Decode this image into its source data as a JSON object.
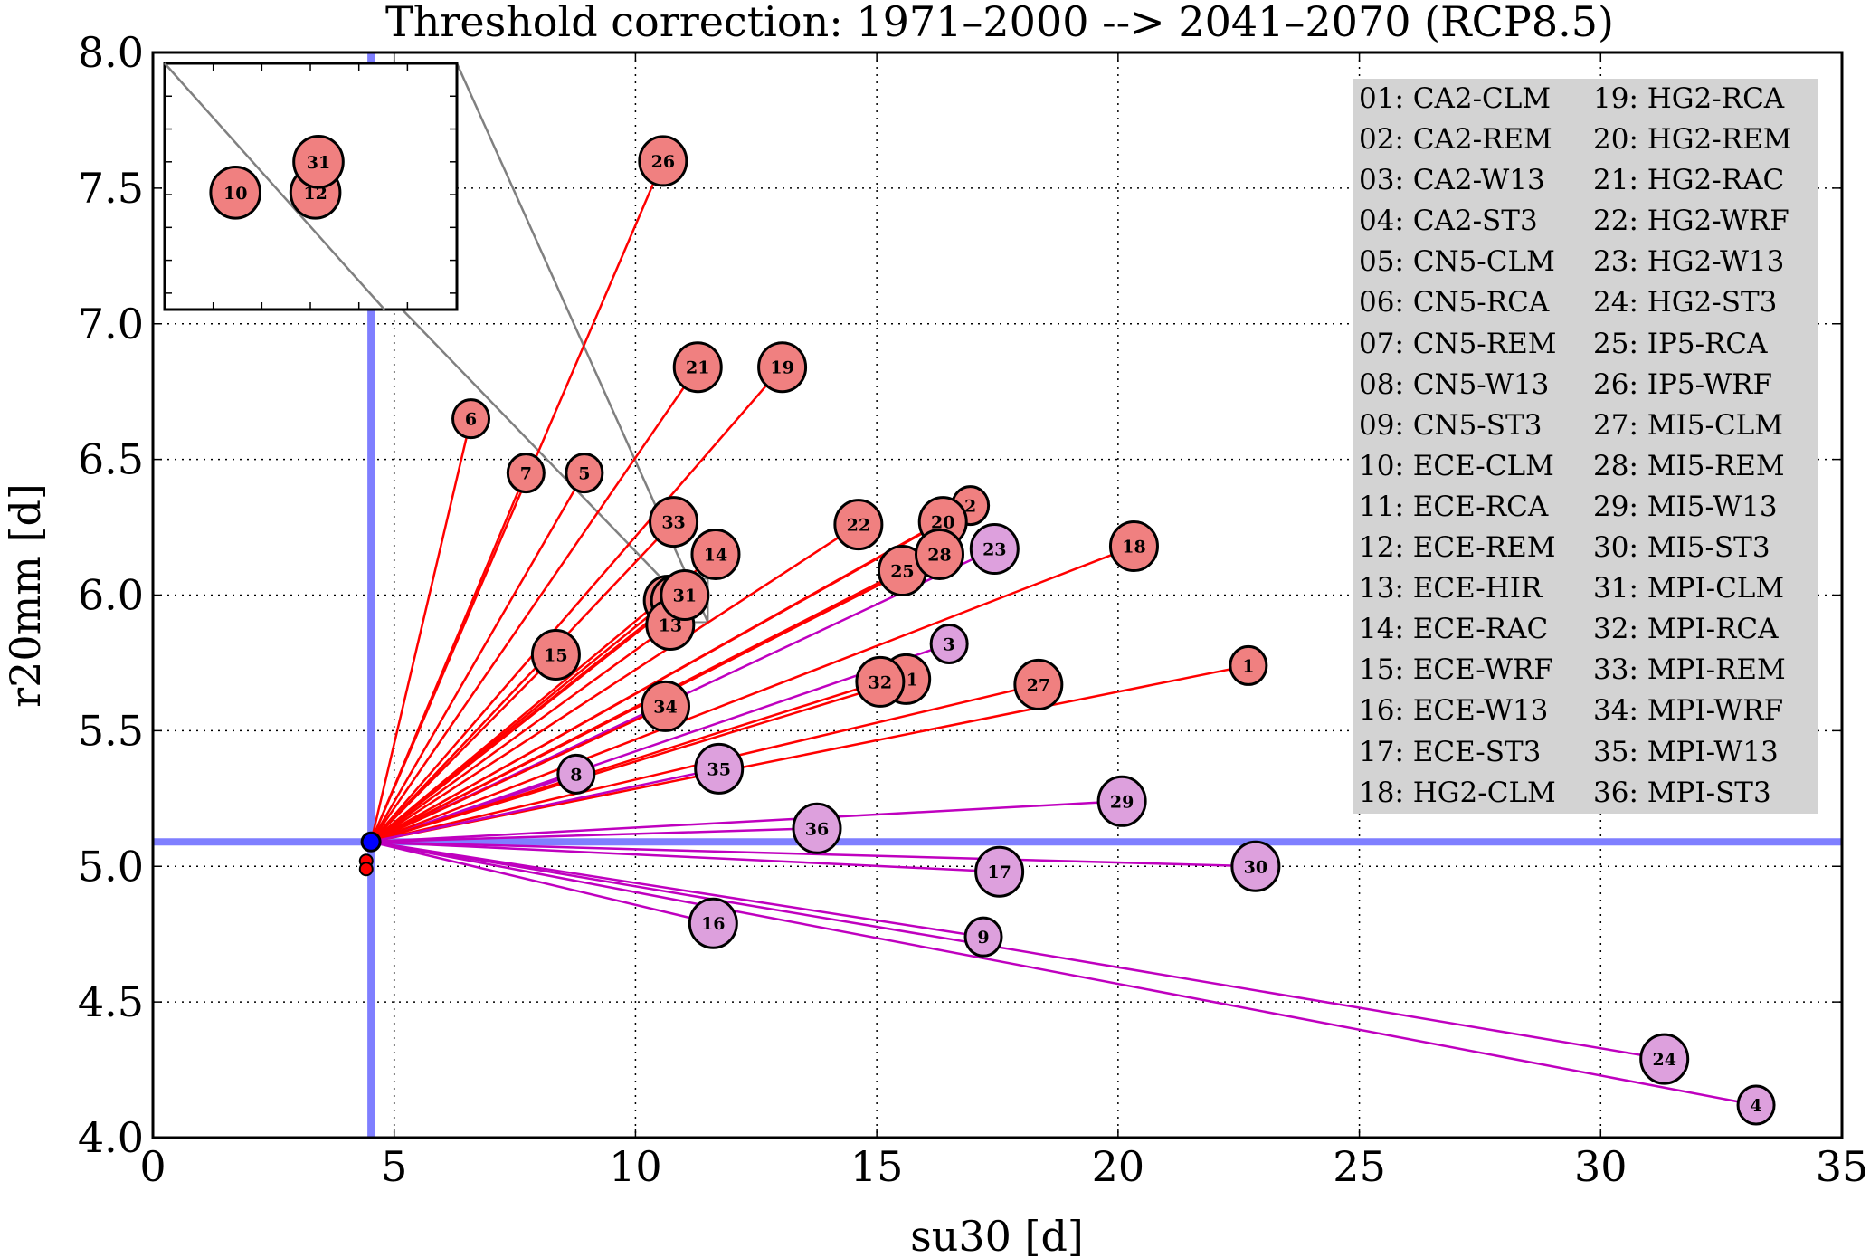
{
  "chart_data": {
    "type": "scatter",
    "title": "Threshold correction: 1971–2000 --> 2041–2070 (RCP8.5)",
    "xlabel": "su30 [d]",
    "ylabel": "r20mm [d]",
    "xlim": [
      0,
      35
    ],
    "ylim": [
      4.0,
      8.0
    ],
    "xticks": [
      "0",
      "5",
      "10",
      "15",
      "20",
      "25",
      "30",
      "35"
    ],
    "yticks": [
      "4.0",
      "4.5",
      "5.0",
      "5.5",
      "6.0",
      "6.5",
      "7.0",
      "7.5",
      "8.0"
    ],
    "grid": true,
    "reference": {
      "x": 4.52,
      "y": 5.09,
      "color": "#7f7fff",
      "marker_color": "#0000ff"
    },
    "origin_points": [
      {
        "x": 4.42,
        "y": 5.02
      },
      {
        "x": 4.42,
        "y": 4.99
      }
    ],
    "colors": {
      "red_fill": "#f08080",
      "red_line": "#ff0000",
      "purple_fill": "#dda0dd",
      "purple_line": "#bf00bf"
    },
    "points": [
      {
        "id": "1",
        "x": 22.7,
        "y": 5.74,
        "group": "red"
      },
      {
        "id": "2",
        "x": 16.94,
        "y": 6.33,
        "group": "red"
      },
      {
        "id": "3",
        "x": 16.5,
        "y": 5.82,
        "group": "purple"
      },
      {
        "id": "4",
        "x": 33.22,
        "y": 4.12,
        "group": "purple"
      },
      {
        "id": "5",
        "x": 8.94,
        "y": 6.45,
        "group": "red"
      },
      {
        "id": "6",
        "x": 6.59,
        "y": 6.65,
        "group": "red"
      },
      {
        "id": "7",
        "x": 7.73,
        "y": 6.45,
        "group": "red"
      },
      {
        "id": "8",
        "x": 8.77,
        "y": 5.34,
        "group": "purple"
      },
      {
        "id": "9",
        "x": 17.21,
        "y": 4.74,
        "group": "purple"
      },
      {
        "id": "10",
        "x": 10.67,
        "y": 5.98,
        "group": "red"
      },
      {
        "id": "11",
        "x": 15.61,
        "y": 5.69,
        "group": "red"
      },
      {
        "id": "12",
        "x": 10.82,
        "y": 5.98,
        "group": "red"
      },
      {
        "id": "13",
        "x": 10.72,
        "y": 5.89,
        "group": "red"
      },
      {
        "id": "14",
        "x": 11.66,
        "y": 6.15,
        "group": "red"
      },
      {
        "id": "15",
        "x": 8.35,
        "y": 5.78,
        "group": "red"
      },
      {
        "id": "16",
        "x": 11.61,
        "y": 4.79,
        "group": "purple"
      },
      {
        "id": "17",
        "x": 17.54,
        "y": 4.98,
        "group": "purple"
      },
      {
        "id": "18",
        "x": 20.33,
        "y": 6.18,
        "group": "red"
      },
      {
        "id": "19",
        "x": 13.04,
        "y": 6.84,
        "group": "red"
      },
      {
        "id": "20",
        "x": 16.37,
        "y": 6.27,
        "group": "red"
      },
      {
        "id": "21",
        "x": 11.29,
        "y": 6.84,
        "group": "red"
      },
      {
        "id": "22",
        "x": 14.62,
        "y": 6.26,
        "group": "red"
      },
      {
        "id": "23",
        "x": 17.44,
        "y": 6.17,
        "group": "purple"
      },
      {
        "id": "24",
        "x": 31.32,
        "y": 4.29,
        "group": "purple"
      },
      {
        "id": "25",
        "x": 15.53,
        "y": 6.09,
        "group": "red"
      },
      {
        "id": "26",
        "x": 10.57,
        "y": 7.6,
        "group": "red"
      },
      {
        "id": "27",
        "x": 18.35,
        "y": 5.67,
        "group": "red"
      },
      {
        "id": "28",
        "x": 16.3,
        "y": 6.15,
        "group": "red"
      },
      {
        "id": "29",
        "x": 20.08,
        "y": 5.24,
        "group": "purple"
      },
      {
        "id": "30",
        "x": 22.85,
        "y": 5.0,
        "group": "purple"
      },
      {
        "id": "31",
        "x": 11.02,
        "y": 6.0,
        "group": "red"
      },
      {
        "id": "32",
        "x": 15.07,
        "y": 5.68,
        "group": "red"
      },
      {
        "id": "33",
        "x": 10.79,
        "y": 6.27,
        "group": "red"
      },
      {
        "id": "34",
        "x": 10.62,
        "y": 5.59,
        "group": "red"
      },
      {
        "id": "35",
        "x": 11.73,
        "y": 5.36,
        "group": "purple"
      },
      {
        "id": "36",
        "x": 13.76,
        "y": 5.14,
        "group": "purple"
      }
    ],
    "inset": {
      "xlim": [
        10.55,
        11.5
      ],
      "ylim": [
        5.9,
        6.06
      ],
      "points": [
        {
          "id": "10",
          "x": 10.78,
          "y": 5.976
        },
        {
          "id": "12",
          "x": 11.04,
          "y": 5.976
        },
        {
          "id": "31",
          "x": 11.05,
          "y": 5.996
        }
      ]
    },
    "legend": {
      "placement": "top-right",
      "col1": [
        "01: CA2-CLM",
        "02: CA2-REM",
        "03: CA2-W13",
        "04: CA2-ST3",
        "05: CN5-CLM",
        "06: CN5-RCA",
        "07: CN5-REM",
        "08: CN5-W13",
        "09: CN5-ST3",
        "10: ECE-CLM",
        "11: ECE-RCA",
        "12: ECE-REM",
        "13: ECE-HIR",
        "14: ECE-RAC",
        "15: ECE-WRF",
        "16: ECE-W13",
        "17: ECE-ST3",
        "18: HG2-CLM"
      ],
      "col2": [
        "19: HG2-RCA",
        "20: HG2-REM",
        "21: HG2-RAC",
        "22: HG2-WRF",
        "23: HG2-W13",
        "24: HG2-ST3",
        "25: IP5-RCA",
        "26: IP5-WRF",
        "27: MI5-CLM",
        "28: MI5-REM",
        "29: MI5-W13",
        "30: MI5-ST3",
        "31: MPI-CLM",
        "32: MPI-RCA",
        "33: MPI-REM",
        "34: MPI-WRF",
        "35: MPI-W13",
        "36: MPI-ST3"
      ]
    }
  }
}
